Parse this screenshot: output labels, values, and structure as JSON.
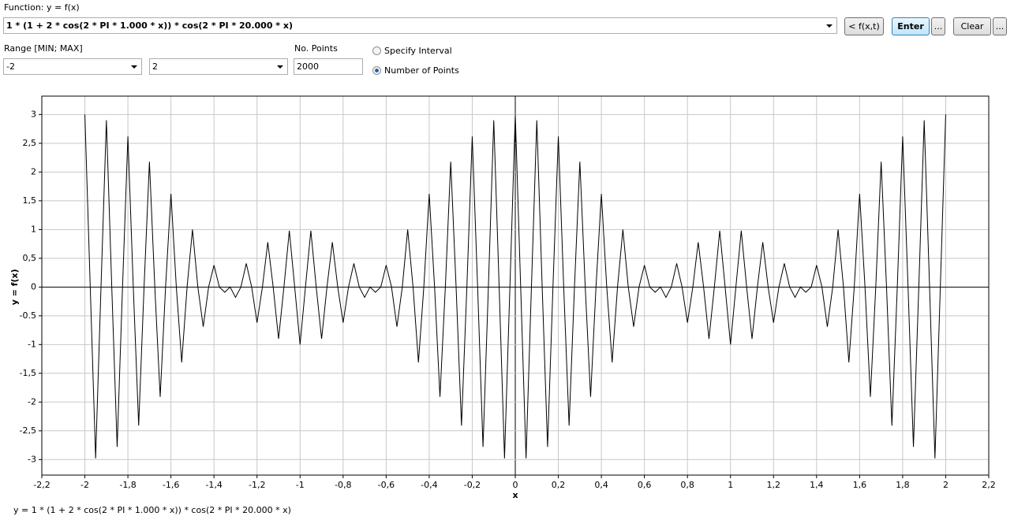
{
  "form": {
    "function_label": "Function: y = f(x)",
    "function_value": "1 * (1 + 2 * cos(2 * PI * 1.000 * x)) * cos(2 * PI * 20.000 * x)",
    "buttons": [
      "< f(x,t)",
      "Enter",
      "...",
      "Clear",
      "..."
    ],
    "range_label": "Range [MIN; MAX]",
    "range_min": "-2",
    "range_max": "2",
    "points_label": "No. Points",
    "points_value": "2000",
    "radios": [
      "Specify Interval",
      "Number of Points"
    ]
  },
  "chart_data": {
    "type": "line",
    "x_label": "x",
    "y_label": "y = f(x)",
    "color": "#000000",
    "grid": true,
    "x": [
      -2,
      -1.975,
      -1.95,
      -1.925,
      -1.9,
      -1.875,
      -1.85,
      -1.825,
      -1.8,
      -1.775,
      -1.75,
      -1.725,
      -1.7,
      -1.675,
      -1.65,
      -1.625,
      -1.6,
      -1.575,
      -1.55,
      -1.525,
      -1.5,
      -1.475,
      -1.45,
      -1.425,
      -1.4,
      -1.375,
      -1.35,
      -1.325,
      -1.3,
      -1.275,
      -1.25,
      -1.225,
      -1.2,
      -1.175,
      -1.15,
      -1.125,
      -1.1,
      -1.075,
      -1.05,
      -1.025,
      -1,
      -0.975,
      -0.95,
      -0.925,
      -0.9,
      -0.875,
      -0.85,
      -0.825,
      -0.8,
      -0.775,
      -0.75,
      -0.725,
      -0.7,
      -0.675,
      -0.65,
      -0.625,
      -0.6,
      -0.575,
      -0.55,
      -0.525,
      -0.5,
      -0.475,
      -0.45,
      -0.425,
      -0.4,
      -0.375,
      -0.35,
      -0.325,
      -0.3,
      -0.275,
      -0.25,
      -0.225,
      -0.2,
      -0.175,
      -0.15,
      -0.125,
      -0.1,
      -0.075,
      -0.05,
      -0.025,
      0,
      0.025,
      0.05,
      0.075,
      0.1,
      0.125,
      0.15,
      0.175,
      0.2,
      0.225,
      0.25,
      0.275,
      0.3,
      0.325,
      0.35,
      0.375,
      0.4,
      0.425,
      0.45,
      0.475,
      0.5,
      0.525,
      0.55,
      0.575,
      0.6,
      0.625,
      0.65,
      0.675,
      0.7,
      0.725,
      0.75,
      0.775,
      0.8,
      0.825,
      0.85,
      0.875,
      0.9,
      0.925,
      0.95,
      0.975,
      1,
      1.025,
      1.05,
      1.075,
      1.1,
      1.125,
      1.15,
      1.175,
      1.2,
      1.225,
      1.25,
      1.275,
      1.3,
      1.325,
      1.35,
      1.375,
      1.4,
      1.425,
      1.45,
      1.475,
      1.5,
      1.525,
      1.55,
      1.575,
      1.6,
      1.625,
      1.65,
      1.675,
      1.7,
      1.725,
      1.75,
      1.775,
      1.8,
      1.825,
      1.85,
      1.875,
      1.9,
      1.925,
      1.95,
      1.975,
      2
    ],
    "values": [
      3,
      0,
      -2.98,
      0,
      2.9,
      0,
      -2.78,
      0,
      2.62,
      0,
      -2.41,
      0,
      2.18,
      0,
      -1.91,
      0,
      1.62,
      0,
      -1.31,
      0,
      1,
      0,
      -0.69,
      0,
      0.38,
      0,
      -0.09,
      0,
      -0.18,
      0,
      0.41,
      0,
      -0.62,
      0,
      0.78,
      0,
      -0.9,
      0,
      0.98,
      0,
      -1,
      0,
      0.98,
      0,
      -0.9,
      0,
      0.78,
      0,
      -0.62,
      0,
      0.41,
      0,
      -0.18,
      0,
      -0.09,
      0,
      0.38,
      0,
      -0.69,
      0,
      1,
      0,
      -1.31,
      0,
      1.62,
      0,
      -1.91,
      0,
      2.18,
      0,
      -2.41,
      0,
      2.62,
      0,
      -2.78,
      0,
      2.9,
      0,
      -2.98,
      0,
      3,
      0,
      -2.98,
      0,
      2.9,
      0,
      -2.78,
      0,
      2.62,
      0,
      -2.41,
      0,
      2.18,
      0,
      -1.91,
      0,
      1.62,
      0,
      -1.31,
      0,
      1,
      0,
      -0.69,
      0,
      0.38,
      0,
      -0.09,
      0,
      -0.18,
      0,
      0.41,
      0,
      -0.62,
      0,
      0.78,
      0,
      -0.9,
      0,
      0.98,
      0,
      -1,
      0,
      0.98,
      0,
      -0.9,
      0,
      0.78,
      0,
      -0.62,
      0,
      0.41,
      0,
      -0.18,
      0,
      -0.09,
      0,
      0.38,
      0,
      -0.69,
      0,
      1,
      0,
      -1.31,
      0,
      1.62,
      0,
      -1.91,
      0,
      2.18,
      0,
      -2.41,
      0,
      2.62,
      0,
      -2.78,
      0,
      2.9,
      0,
      -2.98,
      0,
      3
    ],
    "xlim": [
      -2.2,
      2.2
    ],
    "xticks": [
      {
        "value": -2.2,
        "label": "-2,2"
      },
      -2,
      {
        "value": -1.8,
        "label": "-1,8"
      },
      {
        "value": -1.6,
        "label": "-1,6"
      },
      {
        "value": -1.4,
        "label": "-1,4"
      },
      {
        "value": -1.2,
        "label": "-1,2"
      },
      -1,
      {
        "value": -0.8,
        "label": "-0,8"
      },
      {
        "value": -0.6,
        "label": "-0,6"
      },
      {
        "value": -0.4,
        "label": "-0,4"
      },
      {
        "value": -0.2,
        "label": "-0,2"
      },
      0,
      {
        "value": 0.2,
        "label": "0,2"
      },
      {
        "value": 0.4,
        "label": "0,4"
      },
      {
        "value": 0.6,
        "label": "0,6"
      },
      {
        "value": 0.8,
        "label": "0,8"
      },
      1,
      {
        "value": 1.2,
        "label": "1,2"
      },
      {
        "value": 1.4,
        "label": "1,4"
      },
      {
        "value": 1.6,
        "label": "1,6"
      },
      {
        "value": 1.8,
        "label": "1,8"
      },
      2,
      {
        "value": 2.2,
        "label": "2,2"
      }
    ],
    "ylim": [
      -3.27,
      3.32
    ],
    "yticks": [
      -3,
      {
        "value": -2.5,
        "label": "-2,5"
      },
      -2,
      {
        "value": -1.5,
        "label": "-1,5"
      },
      -1,
      -0.5,
      0,
      {
        "value": 0.5,
        "label": "0,5"
      },
      1,
      {
        "value": 1.5,
        "label": "1,5"
      },
      2,
      {
        "value": 2.5,
        "label": "2,5"
      },
      3
    ]
  },
  "status": "y = 1 * (1 + 2 * cos(2 * PI * 1.000 * x)) * cos(2 * PI * 20.000 * x)"
}
